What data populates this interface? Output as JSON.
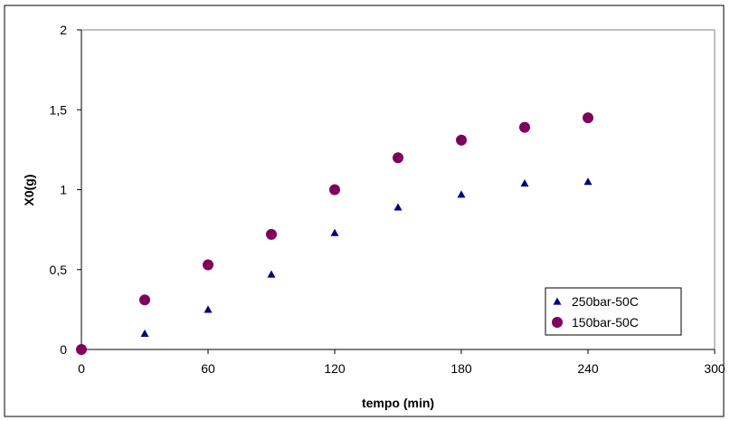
{
  "chart_data": {
    "type": "scatter",
    "xlabel": "tempo (min)",
    "ylabel": "X0(g)",
    "xlim": [
      0,
      300
    ],
    "ylim": [
      0,
      2
    ],
    "x_ticks": [
      "0",
      "60",
      "120",
      "180",
      "240",
      "300"
    ],
    "y_ticks": [
      "0",
      "0,5",
      "1",
      "1,5",
      "2"
    ],
    "grid": false,
    "legend_position": "bottom-right",
    "series": [
      {
        "name": "250bar-50C",
        "marker": "triangle",
        "color": "#000080",
        "x": [
          0,
          30,
          60,
          90,
          120,
          150,
          180,
          210,
          240
        ],
        "y": [
          0.0,
          0.1,
          0.25,
          0.47,
          0.73,
          0.89,
          0.97,
          1.04,
          1.05
        ]
      },
      {
        "name": "150bar-50C",
        "marker": "circle",
        "color": "#800060",
        "x": [
          0,
          30,
          60,
          90,
          120,
          150,
          180,
          210,
          240
        ],
        "y": [
          0.0,
          0.31,
          0.53,
          0.72,
          1.0,
          1.2,
          1.31,
          1.39,
          1.45
        ]
      }
    ]
  }
}
